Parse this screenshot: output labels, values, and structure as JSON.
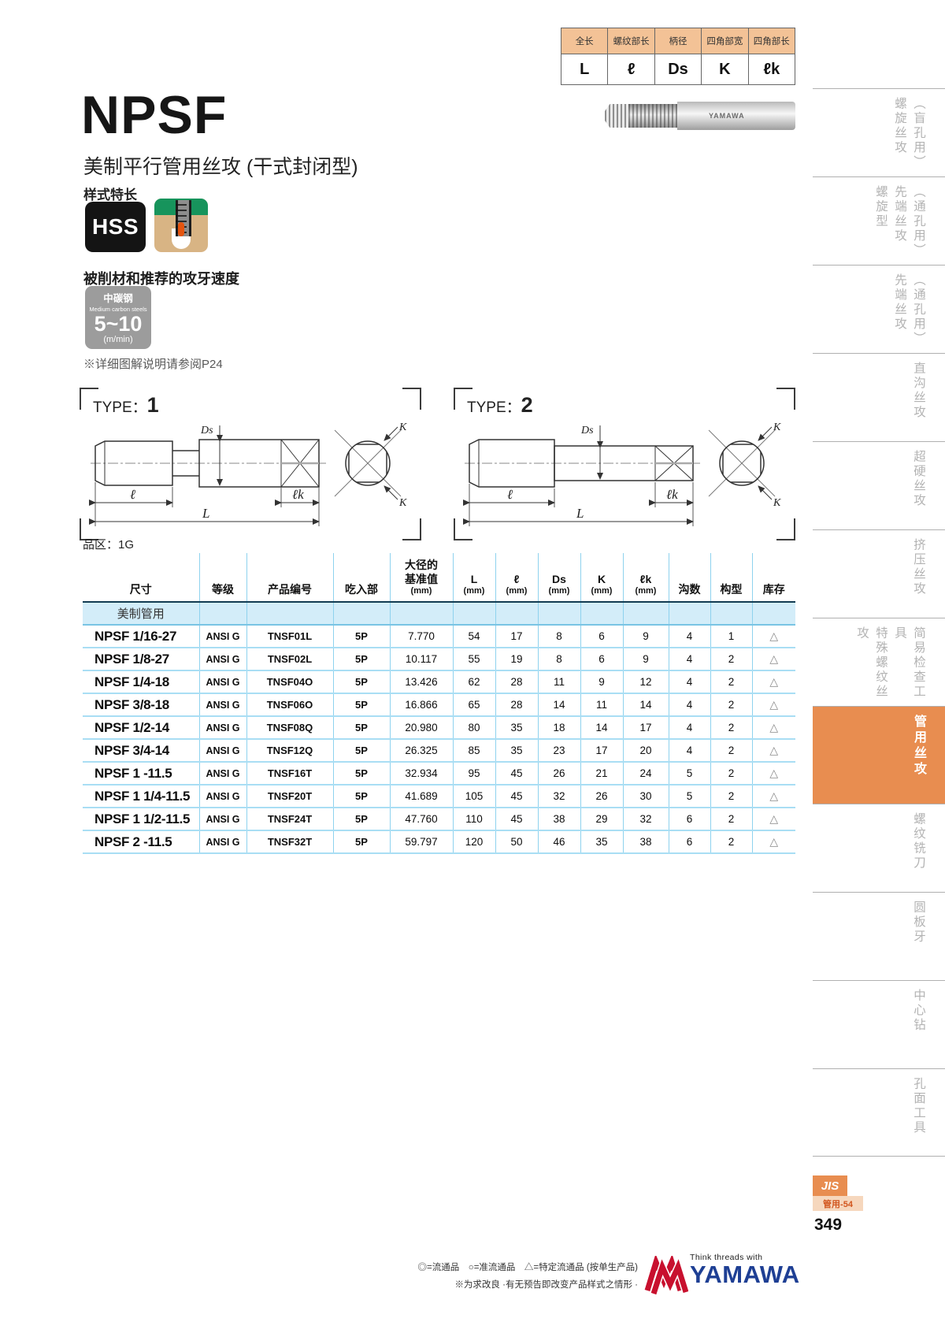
{
  "legend": {
    "headers": [
      "全长",
      "螺纹部长",
      "柄径",
      "四角部宽",
      "四角部长"
    ],
    "symbols": [
      "L",
      "ℓ",
      "Ds",
      "K",
      "ℓk"
    ]
  },
  "title": {
    "main": "NPSF",
    "subtitle": "美制平行管用丝攻 (干式封闭型)",
    "feature": "样式特长",
    "hss": "HSS",
    "tap_brand": "YAMAWA"
  },
  "speed": {
    "heading": "被削材和推荐的攻牙速度",
    "material_cn": "中碳钢",
    "material_en": "Medium carbon steels",
    "range": "5~10",
    "unit": "(m/min)",
    "note": "※详细图解说明请参阅P24"
  },
  "diagrams": {
    "type_label": "TYPE：",
    "type1_num": "1",
    "type2_num": "2",
    "dim_ds": "Ds",
    "dim_l": "ℓ",
    "dim_L": "L",
    "dim_lk": "ℓk",
    "dim_k": "K"
  },
  "table": {
    "zone_label": "品区：1G",
    "group": "美制管用",
    "headers": [
      {
        "lines": [
          "尺寸"
        ],
        "unit": ""
      },
      {
        "lines": [
          "等级"
        ],
        "unit": ""
      },
      {
        "lines": [
          "产品编号"
        ],
        "unit": ""
      },
      {
        "lines": [
          "吃入部"
        ],
        "unit": ""
      },
      {
        "lines": [
          "大径的",
          "基准值"
        ],
        "unit": "(mm)"
      },
      {
        "lines": [
          "L"
        ],
        "unit": "(mm)"
      },
      {
        "lines": [
          "ℓ"
        ],
        "unit": "(mm)"
      },
      {
        "lines": [
          "Ds"
        ],
        "unit": "(mm)"
      },
      {
        "lines": [
          "K"
        ],
        "unit": "(mm)"
      },
      {
        "lines": [
          "ℓk"
        ],
        "unit": "(mm)"
      },
      {
        "lines": [
          "沟数"
        ],
        "unit": ""
      },
      {
        "lines": [
          "构型"
        ],
        "unit": ""
      },
      {
        "lines": [
          "库存"
        ],
        "unit": ""
      }
    ],
    "rows": [
      [
        "NPSF 1/16-27",
        "ANSI G",
        "TNSF01L",
        "5P",
        "7.770",
        "54",
        "17",
        "8",
        "6",
        "9",
        "4",
        "1",
        "△"
      ],
      [
        "NPSF 1/8-27",
        "ANSI G",
        "TNSF02L",
        "5P",
        "10.117",
        "55",
        "19",
        "8",
        "6",
        "9",
        "4",
        "2",
        "△"
      ],
      [
        "NPSF 1/4-18",
        "ANSI G",
        "TNSF04O",
        "5P",
        "13.426",
        "62",
        "28",
        "11",
        "9",
        "12",
        "4",
        "2",
        "△"
      ],
      [
        "NPSF 3/8-18",
        "ANSI G",
        "TNSF06O",
        "5P",
        "16.866",
        "65",
        "28",
        "14",
        "11",
        "14",
        "4",
        "2",
        "△"
      ],
      [
        "NPSF 1/2-14",
        "ANSI G",
        "TNSF08Q",
        "5P",
        "20.980",
        "80",
        "35",
        "18",
        "14",
        "17",
        "4",
        "2",
        "△"
      ],
      [
        "NPSF 3/4-14",
        "ANSI G",
        "TNSF12Q",
        "5P",
        "26.325",
        "85",
        "35",
        "23",
        "17",
        "20",
        "4",
        "2",
        "△"
      ],
      [
        "NPSF 1 -11.5",
        "ANSI G",
        "TNSF16T",
        "5P",
        "32.934",
        "95",
        "45",
        "26",
        "21",
        "24",
        "5",
        "2",
        "△"
      ],
      [
        "NPSF 1 1/4-11.5",
        "ANSI G",
        "TNSF20T",
        "5P",
        "41.689",
        "105",
        "45",
        "32",
        "26",
        "30",
        "5",
        "2",
        "△"
      ],
      [
        "NPSF 1 1/2-11.5",
        "ANSI G",
        "TNSF24T",
        "5P",
        "47.760",
        "110",
        "45",
        "38",
        "29",
        "32",
        "6",
        "2",
        "△"
      ],
      [
        "NPSF 2 -11.5",
        "ANSI G",
        "TNSF32T",
        "5P",
        "59.797",
        "120",
        "50",
        "46",
        "35",
        "38",
        "6",
        "2",
        "△"
      ]
    ]
  },
  "sidebar": {
    "tabs": [
      {
        "segments": [
          "螺旋丝攻",
          "（盲孔用）"
        ]
      },
      {
        "segments": [
          "螺旋型",
          "先端丝攻",
          "（通孔用）"
        ]
      },
      {
        "segments": [
          "先端丝攻",
          "（通孔用）"
        ]
      },
      {
        "segments": [
          "直沟丝攻"
        ]
      },
      {
        "segments": [
          "超硬丝攻"
        ]
      },
      {
        "segments": [
          "挤压丝攻"
        ]
      },
      {
        "segments": [
          "特殊螺纹丝攻",
          "简易检查工具"
        ]
      },
      {
        "segments": [
          "管用丝攻"
        ],
        "active": true
      },
      {
        "segments": [
          "螺纹铣刀"
        ]
      },
      {
        "segments": [
          "圆板牙"
        ]
      },
      {
        "segments": [
          "中心钻"
        ]
      },
      {
        "segments": [
          "孔面工具"
        ]
      }
    ],
    "jis": "JIS",
    "jis_sub": "管用-54",
    "page_number": "349"
  },
  "footer": {
    "stock_legend": "◎=流通品　○=准流通品　△=特定流通品 (按单生产品)",
    "note": "※为求改良 ·有无预告即改变产品样式之情形 ·",
    "brand_tagline": "Think threads with",
    "brand_name": "YAMAWA"
  }
}
